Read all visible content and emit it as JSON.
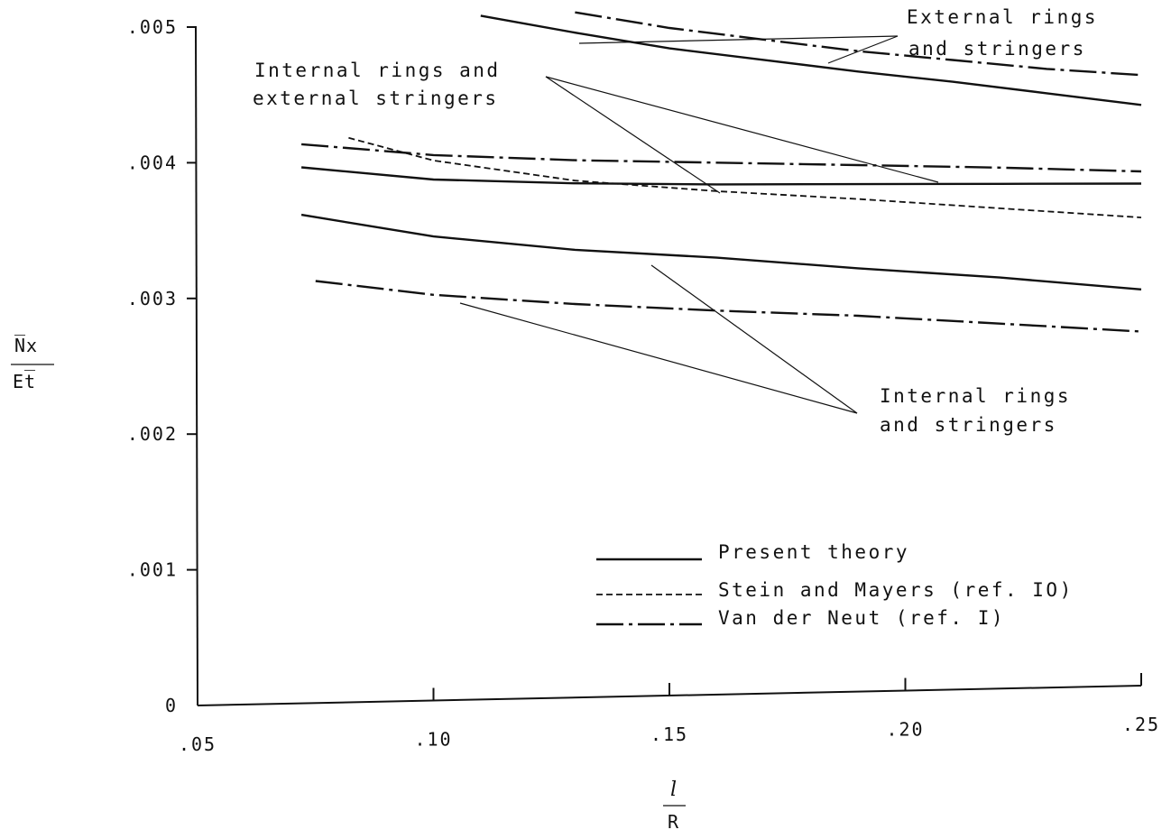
{
  "chart_data": {
    "type": "line",
    "title": "",
    "xlabel": {
      "top": "l",
      "bottom": "R"
    },
    "ylabel": {
      "top": "N̅x",
      "bottom": "Et̅"
    },
    "xlim": [
      0.05,
      0.25
    ],
    "ylim": [
      0,
      0.005
    ],
    "x_ticks": [
      0.05,
      0.1,
      0.15,
      0.2,
      0.25
    ],
    "x_tick_labels": [
      ".05",
      ".10",
      ".15",
      ".20",
      ".25"
    ],
    "y_ticks": [
      0,
      0.001,
      0.002,
      0.003,
      0.004,
      0.005
    ],
    "y_tick_labels": [
      "0",
      ".001",
      ".002",
      ".003",
      ".004",
      ".005"
    ],
    "grid": false,
    "series": [
      {
        "name": "Present theory",
        "style": "solid",
        "group": "External rings and stringers",
        "x": [
          0.11,
          0.13,
          0.15,
          0.17,
          0.19,
          0.21,
          0.23,
          0.25
        ],
        "y": [
          0.00504,
          0.0049,
          0.00477,
          0.00467,
          0.00457,
          0.00448,
          0.00438,
          0.00428
        ]
      },
      {
        "name": "Van der Neut (ref. I)",
        "style": "dashdot",
        "group": "External rings and stringers",
        "x": [
          0.13,
          0.15,
          0.17,
          0.19,
          0.21,
          0.23,
          0.25
        ],
        "y": [
          0.00505,
          0.00492,
          0.00482,
          0.00472,
          0.00464,
          0.00456,
          0.0045
        ]
      },
      {
        "name": "Van der Neut (ref. I)",
        "style": "dashdot",
        "group": "Internal rings and external stringers",
        "x": [
          0.072,
          0.1,
          0.13,
          0.16,
          0.19,
          0.22,
          0.25
        ],
        "y": [
          0.00412,
          0.00402,
          0.00396,
          0.00392,
          0.00388,
          0.00384,
          0.00379
        ]
      },
      {
        "name": "Present theory",
        "style": "solid",
        "group": "Internal rings and external stringers",
        "x": [
          0.072,
          0.1,
          0.13,
          0.16,
          0.19,
          0.22,
          0.25
        ],
        "y": [
          0.00395,
          0.00384,
          0.00379,
          0.00376,
          0.00374,
          0.00372,
          0.0037
        ]
      },
      {
        "name": "Stein and Mayers (ref. IO)",
        "style": "dashed",
        "group": "Internal rings and external stringers",
        "x": [
          0.082,
          0.1,
          0.13,
          0.16,
          0.19,
          0.22,
          0.25
        ],
        "y": [
          0.00416,
          0.00398,
          0.00381,
          0.00371,
          0.00363,
          0.00354,
          0.00345
        ]
      },
      {
        "name": "Present theory",
        "style": "solid",
        "group": "Internal rings and stringers",
        "x": [
          0.072,
          0.1,
          0.13,
          0.16,
          0.19,
          0.22,
          0.25
        ],
        "y": [
          0.0036,
          0.00342,
          0.0033,
          0.00322,
          0.00312,
          0.00303,
          0.00292
        ]
      },
      {
        "name": "Van der Neut (ref. I)",
        "style": "dashdot",
        "group": "Internal rings and stringers",
        "x": [
          0.075,
          0.1,
          0.13,
          0.16,
          0.19,
          0.22,
          0.25
        ],
        "y": [
          0.00311,
          0.00299,
          0.0029,
          0.00283,
          0.00277,
          0.00269,
          0.00261
        ]
      }
    ],
    "annotations": [
      {
        "text_lines": [
          "External rings",
          "and stringers"
        ]
      },
      {
        "text_lines": [
          "Internal rings and",
          "external stringers"
        ]
      },
      {
        "text_lines": [
          "Internal rings",
          "and stringers"
        ]
      }
    ],
    "legend": {
      "position": "lower-right",
      "entries": [
        {
          "label": "Present theory",
          "style": "solid"
        },
        {
          "label": "Stein and Mayers (ref. IO)",
          "style": "dashed"
        },
        {
          "label": "Van der Neut (ref. I)",
          "style": "dashdot"
        }
      ]
    }
  }
}
